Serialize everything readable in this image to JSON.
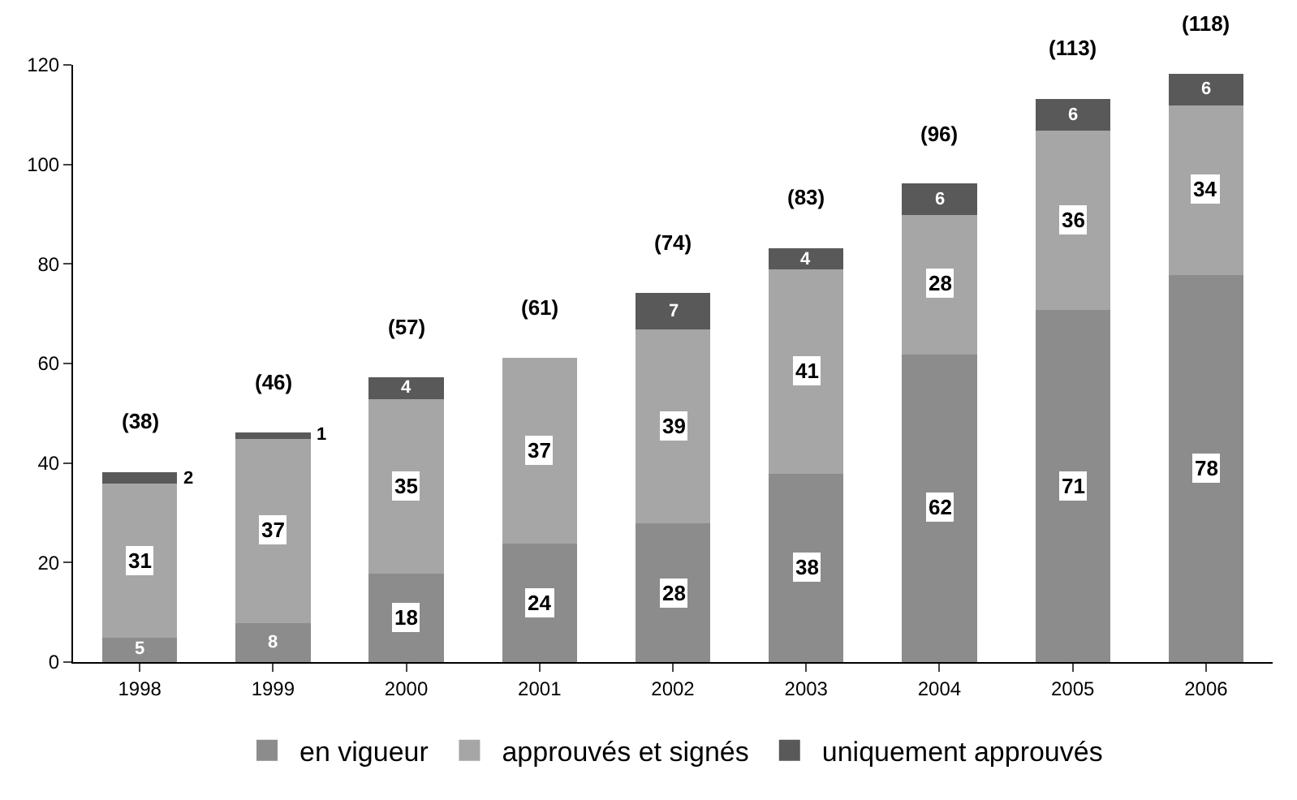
{
  "chart_data": {
    "type": "bar",
    "stacked": true,
    "categories": [
      "1998",
      "1999",
      "2000",
      "2001",
      "2002",
      "2003",
      "2004",
      "2005",
      "2006"
    ],
    "series": [
      {
        "name": "en vigueur",
        "color": "#8c8c8c",
        "values": [
          5,
          8,
          18,
          24,
          28,
          38,
          62,
          71,
          78
        ]
      },
      {
        "name": "approuvés et signés",
        "color": "#a6a6a6",
        "values": [
          31,
          37,
          35,
          37,
          39,
          41,
          28,
          36,
          34
        ]
      },
      {
        "name": "uniquement approuvés",
        "color": "#595959",
        "values": [
          2,
          1,
          4,
          null,
          7,
          4,
          6,
          6,
          6
        ]
      }
    ],
    "totals": [
      "(38)",
      "(46)",
      "(57)",
      "(61)",
      "(74)",
      "(83)",
      "(96)",
      "(113)",
      "(118)"
    ],
    "data_labels": true,
    "ylim": [
      0,
      120
    ],
    "yticks": [
      0,
      20,
      40,
      60,
      80,
      100,
      120
    ],
    "legend": "bottom"
  }
}
